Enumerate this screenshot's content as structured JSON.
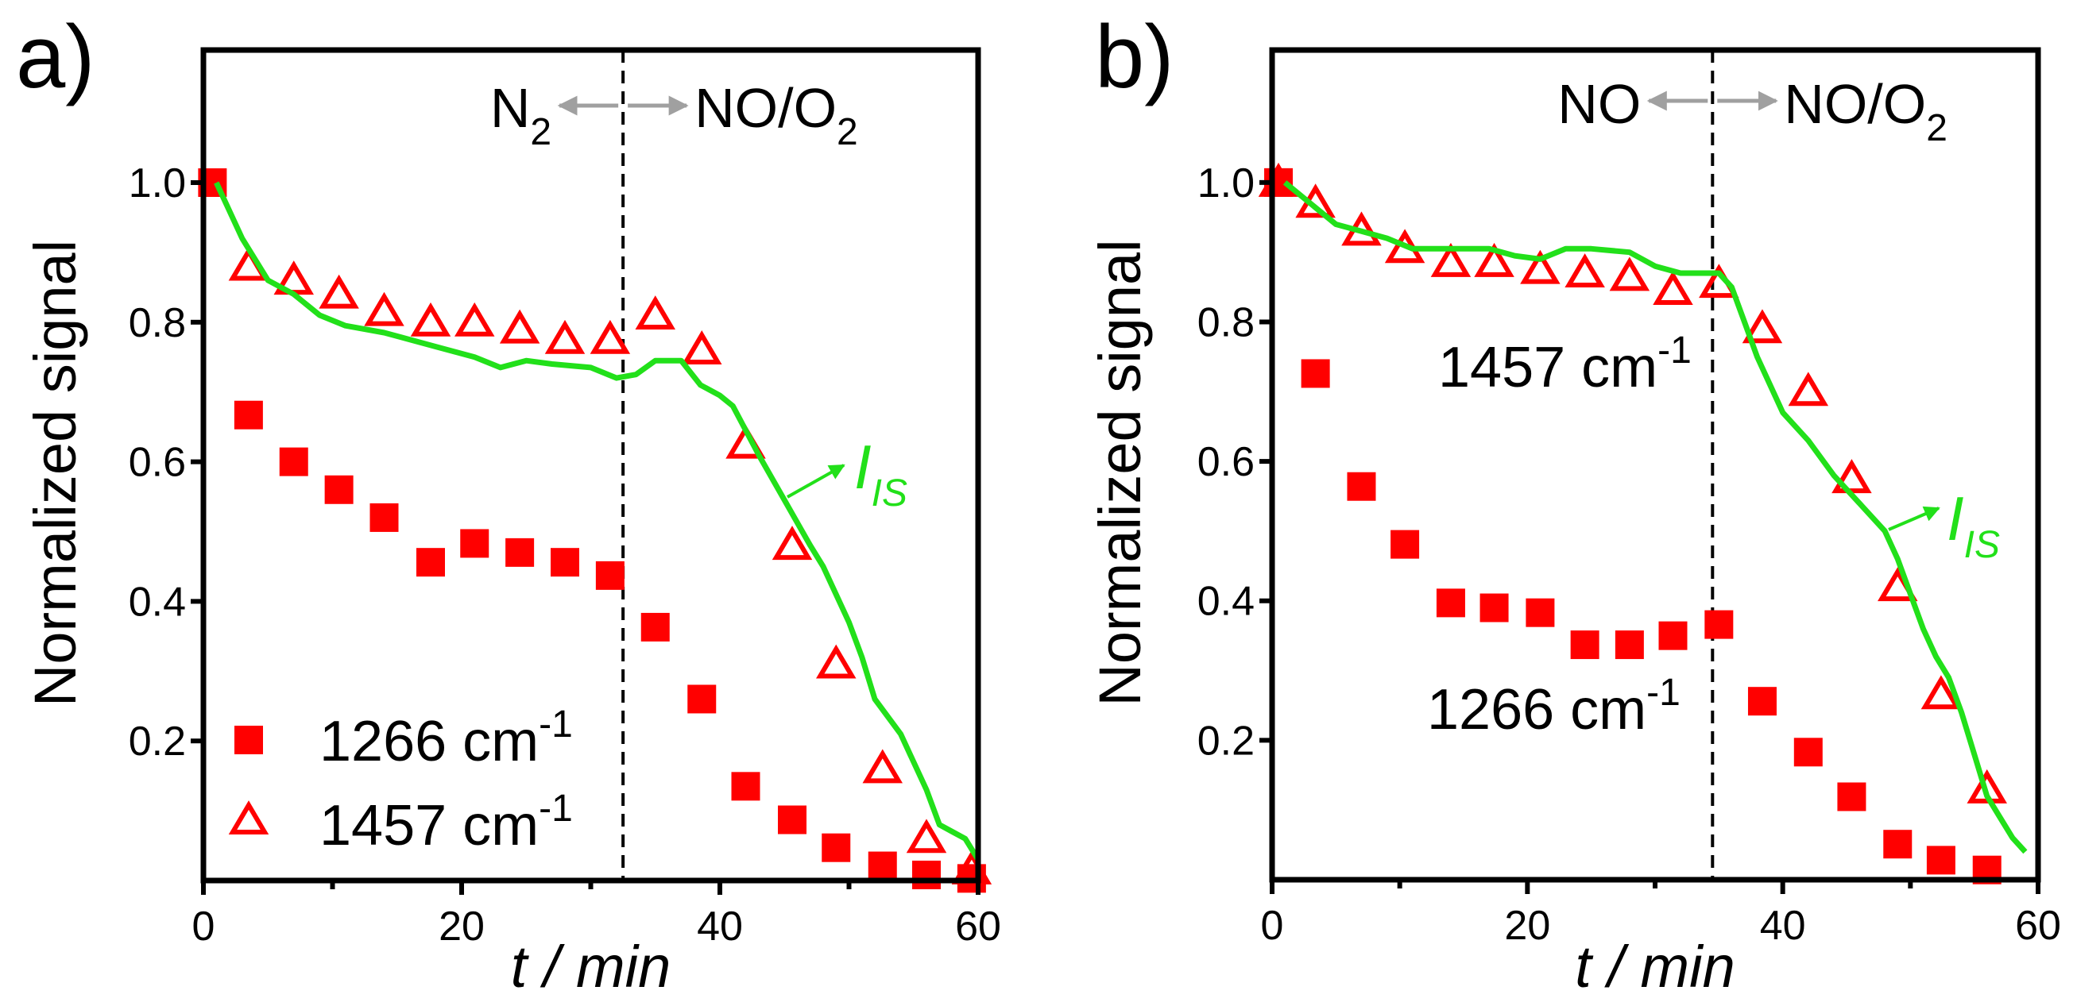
{
  "colors": {
    "marker": "#ff0000",
    "line": "#22e01a",
    "arrow": "#a0a0a0",
    "axis": "#000000"
  },
  "chart_data": [
    {
      "type": "scatter",
      "panel_label": "a)",
      "xlabel": "t / min",
      "ylabel": "Normalized signal",
      "xlim": [
        0,
        60
      ],
      "ylim": [
        0,
        1.19
      ],
      "xticks": [
        "0",
        "20",
        "40",
        "60"
      ],
      "yticks": [
        "0.2",
        "0.4",
        "0.6",
        "0.8",
        "1.0"
      ],
      "divider_x": 32.5,
      "left_region": {
        "label": "N",
        "sub": "2"
      },
      "right_region": {
        "label": "NO/O",
        "sub": "2"
      },
      "legend_placement": "bottom-left",
      "line_label": {
        "main": "I",
        "sub": "IS"
      },
      "series": [
        {
          "name": "1266 cm",
          "sup": "-1",
          "marker": "square",
          "x": [
            0.7,
            3.5,
            7,
            10.5,
            14,
            17.6,
            21,
            24.5,
            28,
            31.5,
            35,
            38.6,
            42,
            45.6,
            49,
            52.6,
            56,
            59.5
          ],
          "y": [
            1.0,
            0.667,
            0.6,
            0.56,
            0.52,
            0.456,
            0.483,
            0.47,
            0.456,
            0.437,
            0.363,
            0.26,
            0.135,
            0.087,
            0.047,
            0.021,
            0.008,
            0.003
          ]
        },
        {
          "name": "1457 cm",
          "sup": "-1",
          "marker": "triangle-open",
          "x": [
            3.5,
            7,
            10.5,
            14,
            17.6,
            21,
            24.5,
            28,
            31.5,
            35,
            38.6,
            42,
            45.6,
            49,
            52.6,
            56,
            59.5
          ],
          "y": [
            0.88,
            0.86,
            0.84,
            0.815,
            0.8,
            0.8,
            0.79,
            0.775,
            0.775,
            0.81,
            0.76,
            0.625,
            0.48,
            0.31,
            0.16,
            0.06,
            0.015
          ]
        },
        {
          "name": "I_IS",
          "marker": "line",
          "x": [
            1,
            3,
            5,
            7,
            9,
            11,
            14,
            18,
            21,
            23,
            25,
            27,
            30,
            32,
            33.5,
            35,
            37,
            38.5,
            40,
            41,
            43,
            45,
            47,
            48,
            50,
            51,
            52,
            54,
            56,
            57,
            58,
            59,
            60
          ],
          "y": [
            1.0,
            0.92,
            0.86,
            0.84,
            0.81,
            0.795,
            0.785,
            0.765,
            0.75,
            0.735,
            0.745,
            0.74,
            0.735,
            0.72,
            0.725,
            0.745,
            0.745,
            0.71,
            0.695,
            0.68,
            0.61,
            0.545,
            0.48,
            0.45,
            0.37,
            0.32,
            0.26,
            0.21,
            0.13,
            0.08,
            0.07,
            0.06,
            0.03
          ]
        }
      ]
    },
    {
      "type": "scatter",
      "panel_label": "b)",
      "xlabel": "t / min",
      "ylabel": "Normalized signal",
      "xlim": [
        0,
        60
      ],
      "ylim": [
        0,
        1.19
      ],
      "xticks": [
        "0",
        "20",
        "40",
        "60"
      ],
      "yticks": [
        "0.2",
        "0.4",
        "0.6",
        "0.8",
        "1.0"
      ],
      "divider_x": 34.5,
      "left_region": {
        "label": "NO",
        "sub": ""
      },
      "right_region": {
        "label": "NO/O",
        "sub": "2"
      },
      "line_label": {
        "main": "I",
        "sub": "IS"
      },
      "series": [
        {
          "name": "1266 cm",
          "sup": "-1",
          "marker": "square",
          "x": [
            0.5,
            3.4,
            7,
            10.4,
            14,
            17.4,
            21,
            24.5,
            28,
            31.4,
            35,
            38.4,
            42,
            45.4,
            49,
            52.4,
            56
          ],
          "y": [
            1.0,
            0.726,
            0.564,
            0.481,
            0.397,
            0.39,
            0.383,
            0.337,
            0.337,
            0.35,
            0.366,
            0.256,
            0.183,
            0.119,
            0.051,
            0.028,
            0.014
          ]
        },
        {
          "name": "1457 cm",
          "sup": "-1",
          "marker": "triangle-open",
          "x": [
            0.5,
            3.4,
            7,
            10.4,
            14,
            17.4,
            21,
            24.5,
            28,
            31.4,
            35,
            38.4,
            42,
            45.4,
            49,
            52.4,
            56
          ],
          "y": [
            1.0,
            0.97,
            0.93,
            0.905,
            0.885,
            0.885,
            0.875,
            0.87,
            0.865,
            0.845,
            0.855,
            0.79,
            0.7,
            0.575,
            0.42,
            0.265,
            0.13
          ]
        },
        {
          "name": "I_IS",
          "marker": "line",
          "x": [
            1,
            3,
            5,
            7,
            9,
            11,
            14,
            17,
            19,
            21,
            23,
            25,
            28,
            30,
            32,
            34,
            35,
            36,
            37,
            38,
            39,
            40,
            42,
            44,
            46,
            48,
            49,
            50,
            51,
            52,
            53,
            54,
            55,
            56,
            57,
            58,
            59
          ],
          "y": [
            1.0,
            0.97,
            0.94,
            0.93,
            0.92,
            0.905,
            0.905,
            0.905,
            0.895,
            0.89,
            0.905,
            0.905,
            0.9,
            0.88,
            0.87,
            0.87,
            0.87,
            0.85,
            0.8,
            0.75,
            0.71,
            0.67,
            0.63,
            0.58,
            0.54,
            0.5,
            0.46,
            0.41,
            0.36,
            0.32,
            0.29,
            0.24,
            0.18,
            0.12,
            0.09,
            0.06,
            0.04
          ]
        }
      ]
    }
  ]
}
